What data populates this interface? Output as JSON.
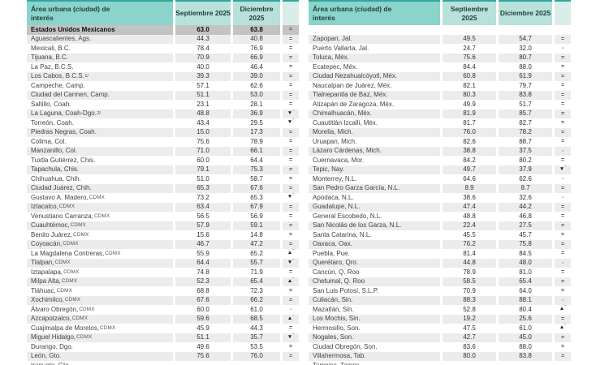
{
  "table_header": {
    "area": "Área urbana (ciudad) de interés",
    "sep": "Septiembre 2025",
    "dec": "Diciembre 2025",
    "sym": ""
  },
  "colors": {
    "header_teal": "#8bd4cb",
    "header_value_teal": "#b9e1db",
    "header_top_border": "#2fa79c",
    "summary_row_gray": "#c3c3c3",
    "stripe_gray": "#ececec",
    "text": "#3c3c3c"
  },
  "symbols_legend": {
    "equal": "=",
    "dash": "-",
    "up_significant": "▲*",
    "down_significant": "▼*"
  },
  "left_table": {
    "summary": [
      "Estados Unidos Mexicanos",
      "63.0",
      "63.8",
      "="
    ],
    "rows": [
      [
        "Aguascalientes, Ags.",
        "44.3",
        "40.8",
        "="
      ],
      [
        "Mexicali, B.C.",
        "78.4",
        "76.9",
        "="
      ],
      [
        "Tijuana, B.C.",
        "70.9",
        "66.9",
        "="
      ],
      [
        "La Paz, B.C.S.",
        "40.0",
        "46.4",
        "="
      ],
      [
        "Los Cabos, B.C.S.",
        "39.3",
        "39.0",
        "=",
        "1/"
      ],
      [
        "Campeche, Camp.",
        "57.1",
        "62.6",
        "="
      ],
      [
        "Ciudad del Carmen, Camp.",
        "51.1",
        "53.0",
        "="
      ],
      [
        "Saltillo, Coah.",
        "23.1",
        "28.1",
        "="
      ],
      [
        "La Laguna, Coah-Dgo.",
        "48.8",
        "36.9",
        "▼*",
        "2/"
      ],
      [
        "Torreón, Coah.",
        "43.4",
        "29.5",
        "▼*"
      ],
      [
        "Piedras Negras, Coah.",
        "15.0",
        "17.3",
        "="
      ],
      [
        "Colima, Col.",
        "75.6",
        "78.9",
        "="
      ],
      [
        "Manzanillo, Col.",
        "71.0",
        "66.1",
        "="
      ],
      [
        "Tuxtla Gutiérrez, Chis.",
        "60.0",
        "64.4",
        "="
      ],
      [
        "Tapachula, Chis.",
        "79.1",
        "75.3",
        "="
      ],
      [
        "Chihuahua, Chih.",
        "51.0",
        "58.7",
        "="
      ],
      [
        "Ciudad Juárez, Chih.",
        "65.3",
        "67.6",
        "="
      ],
      [
        "Gustavo A. Madero, CDMX",
        "73.2",
        "65.3",
        "▼*"
      ],
      [
        "Iztacalco, CDMX",
        "63.4",
        "67.9",
        "="
      ],
      [
        "Venustiano Carranza, CDMX",
        "56.5",
        "56.9",
        "="
      ],
      [
        "Cuauhtémoc, CDMX",
        "57.9",
        "59.1",
        "="
      ],
      [
        "Benito Juárez, CDMX",
        "15.6",
        "14.8",
        "="
      ],
      [
        "Coyoacán, CDMX",
        "46.7",
        "47.2",
        "="
      ],
      [
        "La Magdalena Contreras, CDMX",
        "55.9",
        "65.2",
        "▲*"
      ],
      [
        "Tlalpan, CDMX",
        "64.4",
        "55.7",
        "▼*"
      ],
      [
        "Iztapalapa, CDMX",
        "74.8",
        "71.9",
        "="
      ],
      [
        "Milpa Alta, CDMX",
        "52.3",
        "65.4",
        "▲*"
      ],
      [
        "Tláhuac, CDMX",
        "68.8",
        "72.3",
        "="
      ],
      [
        "Xochimilco, CDMX",
        "67.6",
        "66.2",
        "="
      ],
      [
        "Álvaro Obregón, CDMX",
        "60.0",
        "61.0",
        "-"
      ],
      [
        "Azcapotzalco, CDMX",
        "59.6",
        "68.5",
        "▲*"
      ],
      [
        "Cuajimalpa de Morelos, CDMX",
        "45.9",
        "44.3",
        "="
      ],
      [
        "Miguel Hidalgo, CDMX",
        "51.1",
        "35.7",
        "▼*"
      ],
      [
        "Durango, Dgo.",
        "49.6",
        "53.5",
        "="
      ],
      [
        "León, Gto.",
        "75.6",
        "76.0",
        "="
      ]
    ],
    "partial_row": [
      "Irapuato, Gto.",
      "",
      "",
      ""
    ]
  },
  "right_table": {
    "spacer": true,
    "rows": [
      [
        "Zapopan, Jal.",
        "49.5",
        "54.7",
        "="
      ],
      [
        "Puerto Vallarta, Jal.",
        "24.7",
        "32.0",
        "-"
      ],
      [
        "Toluca, Méx.",
        "75.6",
        "80.7",
        "="
      ],
      [
        "Ecatepec, Méx.",
        "84.4",
        "88.0",
        "="
      ],
      [
        "Ciudad Nezahualcóyotl, Méx.",
        "60.8",
        "61.9",
        "="
      ],
      [
        "Naucalpan de Juárez, Méx.",
        "82.1",
        "79.7",
        "="
      ],
      [
        "Tlalnepantla de Baz, Méx.",
        "80.3",
        "83.8",
        "="
      ],
      [
        "Atizapán de Zaragoza, Méx.",
        "49.9",
        "51.7",
        "="
      ],
      [
        "Chimalhuacán, Méx.",
        "81.9",
        "85.7",
        "="
      ],
      [
        "Cuautitlán Izcalli, Méx.",
        "81.7",
        "82.7",
        "="
      ],
      [
        "Morelia, Mich.",
        "76.0",
        "78.2",
        "="
      ],
      [
        "Uruapan, Mich.",
        "82.6",
        "88.7",
        "="
      ],
      [
        "Lázaro Cárdenas, Mich.",
        "38.8",
        "37.5",
        "-"
      ],
      [
        "Cuernavaca, Mor.",
        "84.2",
        "80.2",
        "="
      ],
      [
        "Tepic, Nay.",
        "49.7",
        "37.9",
        "▼*"
      ],
      [
        "Monterrey, N.L.",
        "64.6",
        "62.6",
        "-"
      ],
      [
        "San Pedro Garza García, N.L.",
        "8.9",
        "8.7",
        "="
      ],
      [
        "Apodaca, N.L.",
        "38.6",
        "32.6",
        "-"
      ],
      [
        "Guadalupe, N.L.",
        "47.4",
        "44.2",
        "="
      ],
      [
        "General Escobedo, N.L.",
        "48.8",
        "46.8",
        "="
      ],
      [
        "San Nicolás de los Garza, N.L.",
        "22.4",
        "27.5",
        "="
      ],
      [
        "Santa Catarina, N.L.",
        "45.5",
        "45.7",
        "="
      ],
      [
        "Oaxaca, Oax.",
        "76.2",
        "75.8",
        "="
      ],
      [
        "Puebla, Pue.",
        "81.4",
        "84.5",
        "="
      ],
      [
        "Querétaro, Qro.",
        "44.8",
        "48.0",
        "-"
      ],
      [
        "Cancún, Q. Roo",
        "78.9",
        "81.0",
        "="
      ],
      [
        "Chetumal, Q. Roo",
        "58.5",
        "65.4",
        "="
      ],
      [
        "San Luis Potosí, S.L.P.",
        "70.9",
        "64.0",
        "="
      ],
      [
        "Culiacán, Sin.",
        "88.3",
        "88.1",
        "-"
      ],
      [
        "Mazatlán, Sin.",
        "52.8",
        "80.4",
        "▲*"
      ],
      [
        "Los Mochis, Sin.",
        "19.2",
        "25.6",
        "="
      ],
      [
        "Hermosillo, Son.",
        "47.5",
        "61.0",
        "▲*"
      ],
      [
        "Nogales, Son.",
        "42.7",
        "45.0",
        "="
      ],
      [
        "Ciudad Obregón, Son.",
        "83.6",
        "88.0",
        "="
      ],
      [
        "Villahermosa, Tab.",
        "80.0",
        "83.8",
        "="
      ]
    ],
    "partial_row": [
      "Tampico, Tamps.",
      "",
      "",
      ""
    ]
  }
}
